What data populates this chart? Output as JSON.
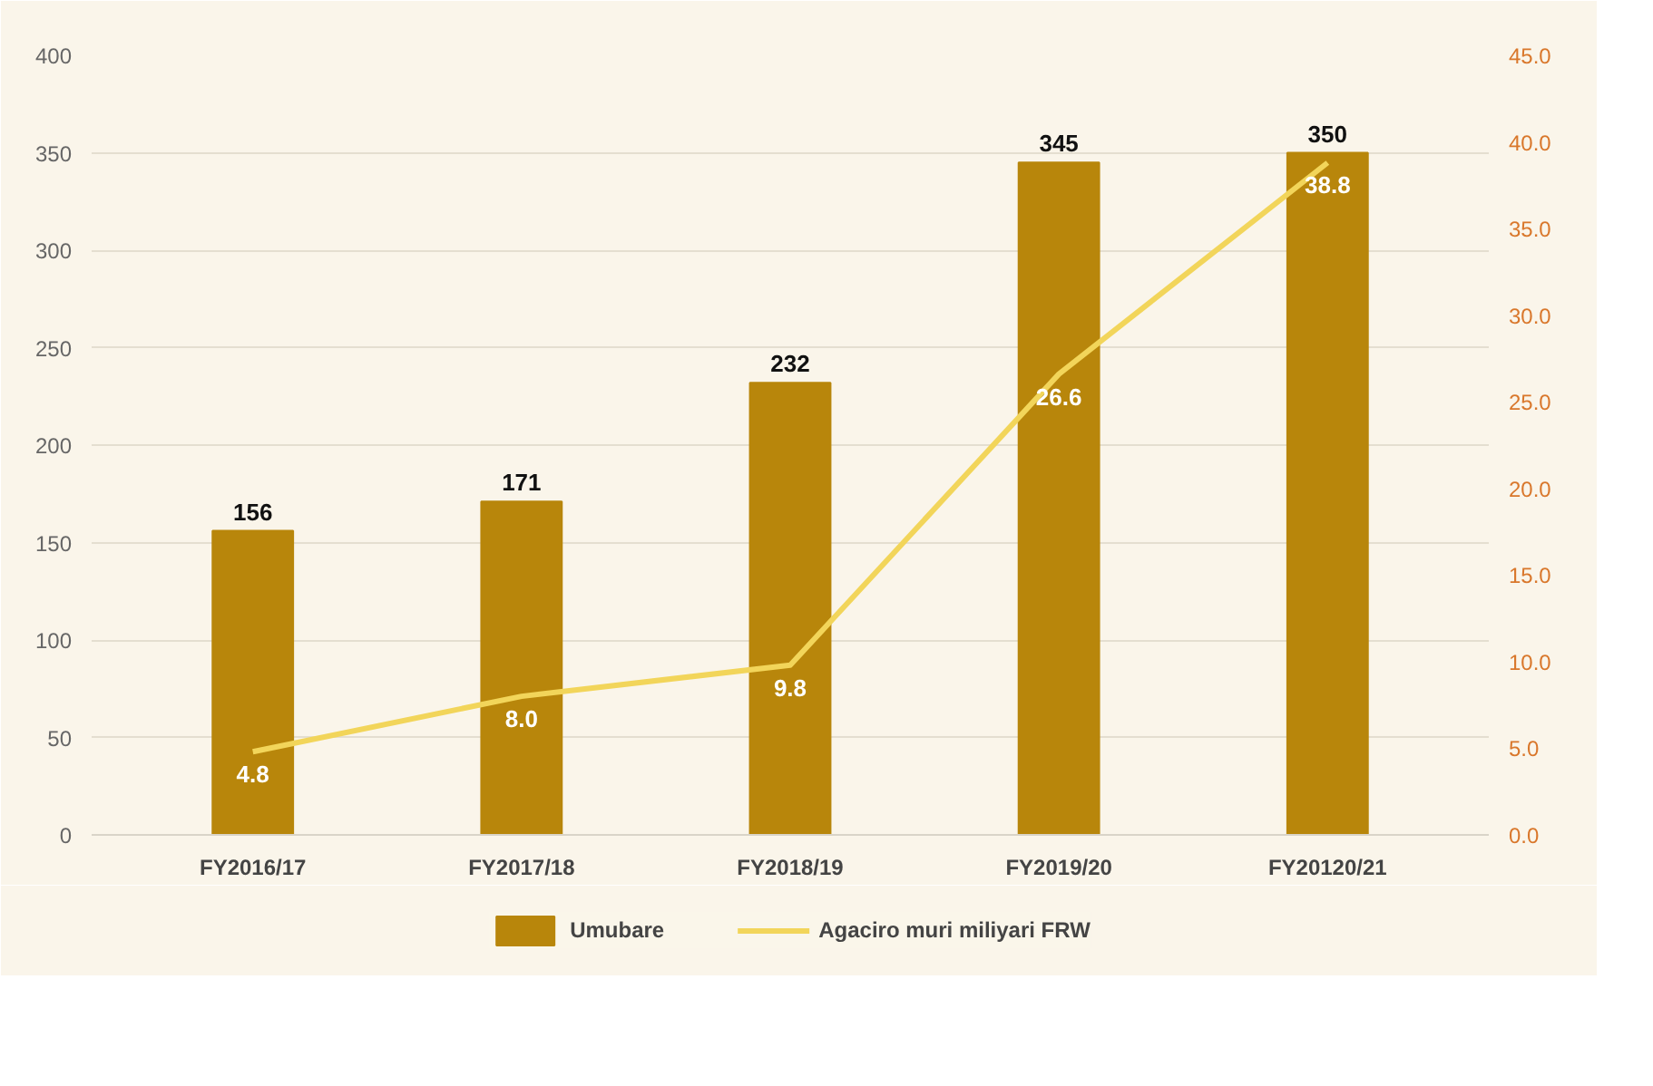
{
  "chart_data": {
    "type": "bar",
    "categories": [
      "FY2016/17",
      "FY2017/18",
      "FY2018/19",
      "FY2019/20",
      "FY20120/21"
    ],
    "series": [
      {
        "name": "Umubare",
        "color": "#b8860b",
        "values": [
          156,
          171,
          232,
          345,
          350
        ],
        "value_labels": [
          "156",
          "171",
          "232",
          "345",
          "350"
        ]
      },
      {
        "name": "Agaciro muri miliyari FRW",
        "type": "line",
        "axis": "y2",
        "color": "#f2d55a",
        "values": [
          4.8,
          8.0,
          9.8,
          26.6,
          38.8
        ],
        "value_labels": [
          "4.8",
          "8.0",
          "9.8",
          "26.6",
          "38.8"
        ]
      }
    ],
    "ylim": [
      0,
      400
    ],
    "yticks": [
      0,
      50,
      100,
      150,
      200,
      250,
      300,
      350,
      400
    ],
    "y2lim": [
      0,
      45
    ],
    "y2ticks": [
      {
        "value": 0,
        "label": "0.0"
      },
      {
        "value": 5,
        "label": "5.0"
      },
      {
        "value": 10,
        "label": "10.0"
      },
      {
        "value": 15,
        "label": "15.0"
      },
      {
        "value": 20,
        "label": "20.0"
      },
      {
        "value": 25,
        "label": "25.0"
      },
      {
        "value": 30,
        "label": "30.0"
      },
      {
        "value": 35,
        "label": "35.0"
      },
      {
        "value": 40,
        "label": "40.0"
      },
      {
        "value": 45,
        "label": "45.0"
      }
    ],
    "grid": "y",
    "legend": "bottom"
  }
}
